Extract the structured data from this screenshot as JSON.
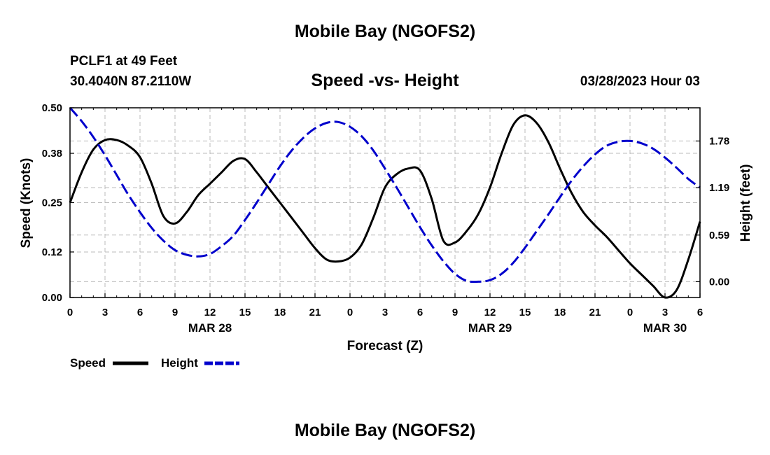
{
  "header": {
    "title": "Mobile Bay (NGOFS2)",
    "station": "PCLF1 at 49 Feet",
    "coords": "30.4040N  87.2110W",
    "subtitle": "Speed -vs- Height",
    "datetime": "03/28/2023 Hour 03"
  },
  "footer": {
    "title": "Mobile Bay (NGOFS2)"
  },
  "legend": [
    {
      "label": "Speed",
      "color": "#000000",
      "style": "solid"
    },
    {
      "label": "Height",
      "color": "#0000cc",
      "style": "dashed"
    }
  ],
  "chart_data": {
    "type": "line",
    "xlabel": "Forecast (Z)",
    "ylabel": "Speed (Knots)",
    "y2label": "Height (feet)",
    "xlim": [
      0,
      54
    ],
    "ylim": [
      0,
      0.5
    ],
    "y2lim": [
      -0.2,
      2.2
    ],
    "x_ticks": [
      0,
      3,
      6,
      9,
      12,
      15,
      18,
      21,
      24,
      27,
      30,
      33,
      36,
      39,
      42,
      45,
      48,
      51,
      54
    ],
    "x_tick_labels": [
      "0",
      "3",
      "6",
      "9",
      "12",
      "15",
      "18",
      "21",
      "0",
      "3",
      "6",
      "9",
      "12",
      "15",
      "18",
      "21",
      "0",
      "3",
      "6"
    ],
    "date_labels": [
      {
        "x": 12,
        "label": "MAR 28"
      },
      {
        "x": 36,
        "label": "MAR 29"
      },
      {
        "x": 51,
        "label": "MAR 30"
      }
    ],
    "y_ticks": [
      0.0,
      0.12,
      0.25,
      0.38,
      0.5
    ],
    "y_tick_labels": [
      "0.00",
      "0.12",
      "0.25",
      "0.38",
      "0.50"
    ],
    "y2_ticks": [
      0.0,
      0.59,
      1.19,
      1.78
    ],
    "y2_tick_labels": [
      "0.00",
      "0.59",
      "1.19",
      "1.78"
    ],
    "grid": true,
    "series": [
      {
        "name": "Speed",
        "axis": "left",
        "color": "#000000",
        "dash": "solid",
        "x": [
          0,
          1,
          2,
          3,
          4,
          5,
          6,
          7,
          8,
          9,
          10,
          11,
          12,
          13,
          14,
          15,
          16,
          17,
          18,
          19,
          20,
          21,
          22,
          23,
          24,
          25,
          26,
          27,
          28,
          29,
          30,
          31,
          32,
          33,
          34,
          35,
          36,
          37,
          38,
          39,
          40,
          41,
          42,
          43,
          44,
          45,
          46,
          47,
          48,
          49,
          50,
          51,
          52,
          53,
          54
        ],
        "values": [
          0.25,
          0.33,
          0.39,
          0.415,
          0.415,
          0.4,
          0.37,
          0.3,
          0.215,
          0.195,
          0.225,
          0.27,
          0.3,
          0.33,
          0.36,
          0.365,
          0.33,
          0.29,
          0.25,
          0.21,
          0.17,
          0.13,
          0.1,
          0.095,
          0.105,
          0.14,
          0.21,
          0.29,
          0.325,
          0.34,
          0.335,
          0.26,
          0.15,
          0.145,
          0.175,
          0.22,
          0.29,
          0.38,
          0.455,
          0.48,
          0.46,
          0.41,
          0.34,
          0.275,
          0.225,
          0.19,
          0.16,
          0.125,
          0.09,
          0.06,
          0.03,
          0.0,
          0.02,
          0.1,
          0.2
        ]
      },
      {
        "name": "Height",
        "axis": "right",
        "color": "#0000cc",
        "dash": "dashed",
        "x": [
          0,
          1,
          2,
          3,
          4,
          5,
          6,
          7,
          8,
          9,
          10,
          11,
          12,
          13,
          14,
          15,
          16,
          17,
          18,
          19,
          20,
          21,
          22,
          23,
          24,
          25,
          26,
          27,
          28,
          29,
          30,
          31,
          32,
          33,
          34,
          35,
          36,
          37,
          38,
          39,
          40,
          41,
          42,
          43,
          44,
          45,
          46,
          47,
          48,
          49,
          50,
          51,
          52,
          53,
          54
        ],
        "values": [
          2.2,
          2.03,
          1.83,
          1.6,
          1.35,
          1.1,
          0.88,
          0.68,
          0.52,
          0.4,
          0.34,
          0.32,
          0.35,
          0.45,
          0.58,
          0.78,
          1.0,
          1.23,
          1.46,
          1.66,
          1.82,
          1.94,
          2.01,
          2.02,
          1.96,
          1.84,
          1.66,
          1.43,
          1.19,
          0.94,
          0.69,
          0.46,
          0.26,
          0.1,
          0.01,
          0.0,
          0.02,
          0.1,
          0.24,
          0.43,
          0.64,
          0.85,
          1.07,
          1.28,
          1.46,
          1.61,
          1.72,
          1.77,
          1.78,
          1.75,
          1.68,
          1.57,
          1.44,
          1.3,
          1.19
        ]
      }
    ]
  }
}
